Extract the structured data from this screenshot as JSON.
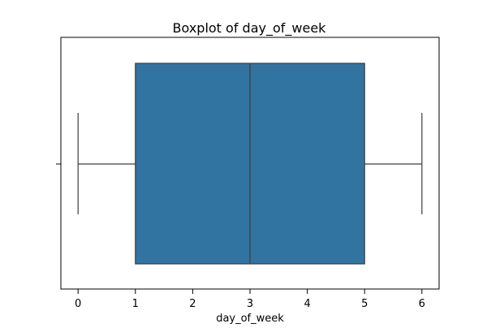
{
  "chart_data": {
    "type": "boxplot",
    "title": "Boxplot of day_of_week",
    "xlabel": "day_of_week",
    "ylabel": "",
    "orientation": "horizontal",
    "xlim": [
      -0.3,
      6.3
    ],
    "xticks": [
      0,
      1,
      2,
      3,
      4,
      5,
      6
    ],
    "xtick_labels": [
      "0",
      "1",
      "2",
      "3",
      "4",
      "5",
      "6"
    ],
    "grid": false,
    "box": {
      "whisker_low": 0,
      "q1": 1,
      "median": 3,
      "q3": 5,
      "whisker_high": 6
    },
    "colors": {
      "box_fill": "#3274a1",
      "line": "#3d3d3d",
      "axis": "#000000"
    }
  }
}
